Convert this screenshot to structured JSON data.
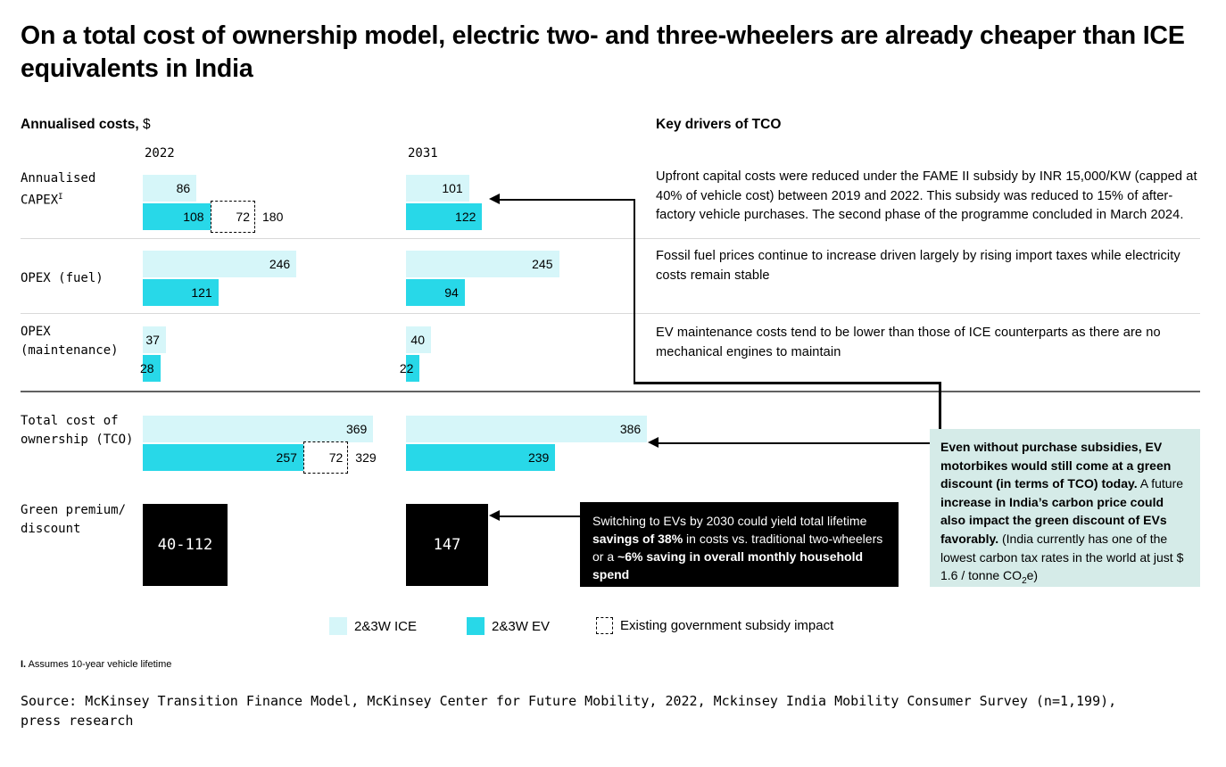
{
  "title": "On a total cost of ownership model, electric two- and three-wheelers are already cheaper than ICE equivalents in India",
  "left_panel": {
    "header_bold": "Annualised costs,",
    "header_unit": " $"
  },
  "right_panel": {
    "header": "Key drivers of TCO",
    "paragraphs": [
      "Upfront capital costs were reduced under the FAME II subsidy by INR 15,000/KW (capped at 40% of vehicle cost) between 2019 and 2022. This subsidy was reduced to 15% of after-factory vehicle purchases. The second phase of the programme concluded in March 2024.",
      "Fossil fuel prices continue to increase driven largely by rising import taxes while electricity costs remain stable",
      "EV maintenance costs tend to be lower than those of ICE counterparts as there are no mechanical engines to maintain"
    ]
  },
  "chart_data": {
    "type": "bar",
    "title": "Annualised costs, $",
    "unit": "$",
    "column_years": [
      "2022",
      "2031"
    ],
    "colors": {
      "ice": "#d6f6f9",
      "ev": "#28d8e8",
      "premium_box": "#000000",
      "teal_callout_bg": "#d5ebe8"
    },
    "series_names": [
      "2&3W ICE",
      "2&3W EV"
    ],
    "rows": [
      {
        "label_lines": [
          "Annualised",
          "CAPEX"
        ],
        "footnote_mark": "I",
        "groups": [
          {
            "year": "2022",
            "ice": 86,
            "ev": 108,
            "subsidy": 72,
            "total_with_subsidy": 180
          },
          {
            "year": "2031",
            "ice": 101,
            "ev": 122
          }
        ]
      },
      {
        "label_lines": [
          "OPEX (fuel)"
        ],
        "groups": [
          {
            "year": "2022",
            "ice": 246,
            "ev": 121
          },
          {
            "year": "2031",
            "ice": 245,
            "ev": 94
          }
        ]
      },
      {
        "label_lines": [
          "OPEX",
          "(maintenance)"
        ],
        "groups": [
          {
            "year": "2022",
            "ice": 37,
            "ev": 28
          },
          {
            "year": "2031",
            "ice": 40,
            "ev": 22
          }
        ]
      },
      {
        "label_lines": [
          "Total cost of",
          "ownership (TCO)"
        ],
        "groups": [
          {
            "year": "2022",
            "ice": 369,
            "ev": 257,
            "subsidy": 72,
            "total_with_subsidy": 329
          },
          {
            "year": "2031",
            "ice": 386,
            "ev": 239
          }
        ]
      }
    ],
    "green_premium": {
      "label_lines": [
        "Green premium/",
        "discount"
      ],
      "boxes": [
        {
          "year": "2022",
          "value": "40-112"
        },
        {
          "year": "2031",
          "value": "147"
        }
      ]
    },
    "legend": [
      {
        "label": "2&3W ICE",
        "swatch": "ice"
      },
      {
        "label": "2&3W EV",
        "swatch": "ev"
      },
      {
        "label": "Existing government subsidy impact",
        "swatch": "dashed"
      }
    ]
  },
  "black_callout": {
    "segments": [
      {
        "text": "Switching to EVs by 2030 could yield total lifetime "
      },
      {
        "text": "savings of 38%",
        "bold": true
      },
      {
        "text": " in costs vs. traditional two-wheelers or a "
      },
      {
        "text": "~6% saving in overall monthly household spend",
        "bold": true
      }
    ]
  },
  "teal_callout": {
    "segments": [
      {
        "text": "Even without purchase subsidies, EV motorbikes would still come at a green discount (in terms of TCO) today.",
        "bold": true
      },
      {
        "text": " A future "
      },
      {
        "text": "increase in India’s carbon price could also impact the green discount of EVs favorably.",
        "bold": true
      },
      {
        "text": " (India currently has one of the lowest carbon tax rates in the world at just $ 1.6 / tonne CO"
      },
      {
        "text": "2",
        "sub": true
      },
      {
        "text": "e)"
      }
    ]
  },
  "footnote": {
    "mark": "I.",
    "text": " Assumes 10-year vehicle lifetime"
  },
  "source": "Source: McKinsey Transition Finance Model, McKinsey Center for Future Mobility, 2022, Mckinsey India Mobility Consumer Survey (n=1,199), press research"
}
